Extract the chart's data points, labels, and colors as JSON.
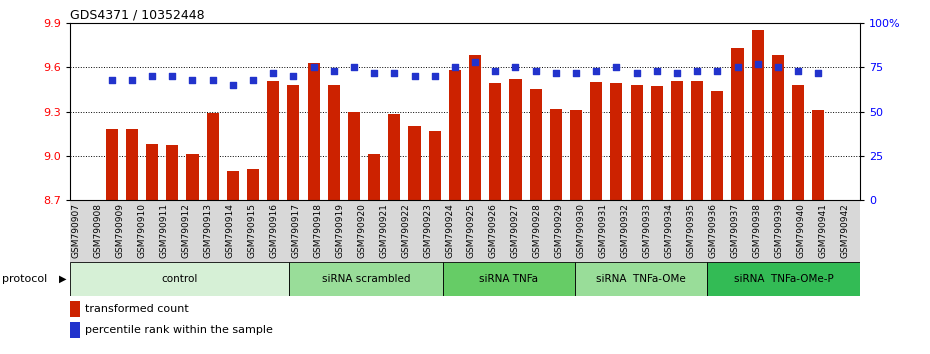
{
  "title": "GDS4371 / 10352448",
  "samples": [
    "GSM790907",
    "GSM790908",
    "GSM790909",
    "GSM790910",
    "GSM790911",
    "GSM790912",
    "GSM790913",
    "GSM790914",
    "GSM790915",
    "GSM790916",
    "GSM790917",
    "GSM790918",
    "GSM790919",
    "GSM790920",
    "GSM790921",
    "GSM790922",
    "GSM790923",
    "GSM790924",
    "GSM790925",
    "GSM790926",
    "GSM790927",
    "GSM790928",
    "GSM790929",
    "GSM790930",
    "GSM790931",
    "GSM790932",
    "GSM790933",
    "GSM790934",
    "GSM790935",
    "GSM790936",
    "GSM790937",
    "GSM790938",
    "GSM790939",
    "GSM790940",
    "GSM790941",
    "GSM790942"
  ],
  "bar_values": [
    9.18,
    9.18,
    9.08,
    9.07,
    9.01,
    9.29,
    8.9,
    8.91,
    9.51,
    9.48,
    9.63,
    9.48,
    9.3,
    9.01,
    9.28,
    9.2,
    9.17,
    9.58,
    9.68,
    9.49,
    9.52,
    9.45,
    9.32,
    9.31,
    9.5,
    9.49,
    9.48,
    9.47,
    9.51,
    9.51,
    9.44,
    9.73,
    9.85,
    9.68,
    9.48,
    9.31
  ],
  "dot_values": [
    68,
    68,
    70,
    70,
    68,
    68,
    65,
    68,
    72,
    70,
    75,
    73,
    75,
    72,
    72,
    70,
    70,
    75,
    78,
    73,
    75,
    73,
    72,
    72,
    73,
    75,
    72,
    73,
    72,
    73,
    73,
    75,
    77,
    75,
    73,
    72
  ],
  "ylim_left": [
    8.7,
    9.9
  ],
  "ylim_right": [
    0,
    100
  ],
  "yticks_left": [
    8.7,
    9.0,
    9.3,
    9.6,
    9.9
  ],
  "yticks_right": [
    0,
    25,
    50,
    75,
    100
  ],
  "ytick_labels_right": [
    "0",
    "25",
    "50",
    "75",
    "100%"
  ],
  "groups": [
    {
      "label": "control",
      "start": 0,
      "end": 9,
      "color": "#d6f0d6"
    },
    {
      "label": "siRNA scrambled",
      "start": 10,
      "end": 16,
      "color": "#99dd99"
    },
    {
      "label": "siRNA TNFa",
      "start": 17,
      "end": 22,
      "color": "#66cc66"
    },
    {
      "label": "siRNA  TNFa-OMe",
      "start": 23,
      "end": 28,
      "color": "#99dd99"
    },
    {
      "label": "siRNA  TNFa-OMe-P",
      "start": 29,
      "end": 35,
      "color": "#33bb55"
    }
  ],
  "bar_color": "#cc2200",
  "dot_color": "#2233cc"
}
